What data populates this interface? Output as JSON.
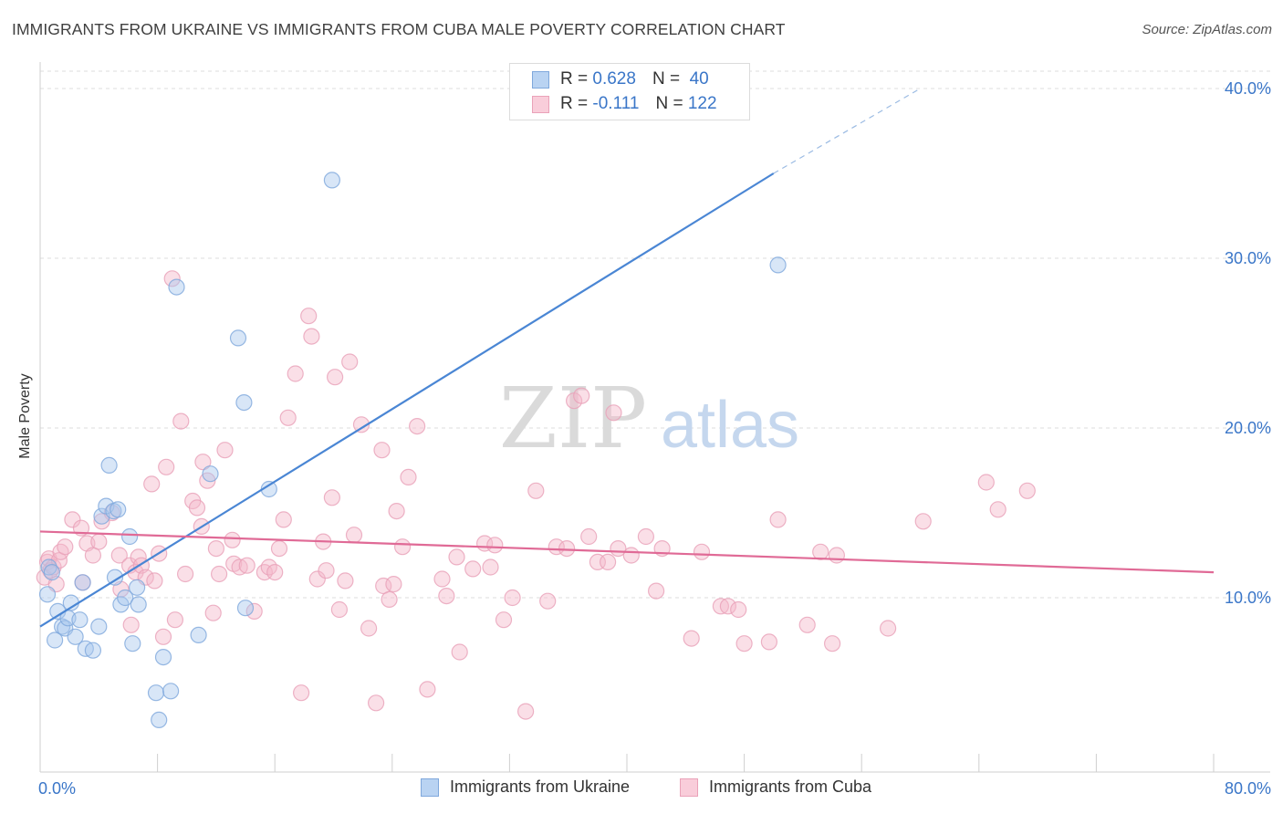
{
  "header": {
    "title": "IMMIGRANTS FROM UKRAINE VS IMMIGRANTS FROM CUBA MALE POVERTY CORRELATION CHART",
    "source": "Source: ZipAtlas.com"
  },
  "watermark": {
    "zip": "ZIP",
    "atlas": "atlas"
  },
  "legend": {
    "rows": [
      {
        "r_label": "R =",
        "r_value": "0.628",
        "n_label": "N =",
        "n_value": "40",
        "color": "#a9c8ee"
      },
      {
        "r_label": "R =",
        "r_value": "-0.111",
        "n_label": "N =",
        "n_value": "122",
        "color": "#f4b8ca"
      }
    ]
  },
  "bottom_legend": [
    {
      "label": "Immigrants from Ukraine",
      "color": "#a9c8ee"
    },
    {
      "label": "Immigrants from Cuba",
      "color": "#f4b8ca"
    }
  ],
  "chart_data": {
    "type": "scatter",
    "ylabel": "Male Poverty",
    "xlabel": "",
    "xlim": [
      0,
      80
    ],
    "ylim": [
      0,
      42
    ],
    "x_tick_labels": [
      {
        "value": 0,
        "label": "0.0%"
      },
      {
        "value": 80,
        "label": "80.0%"
      }
    ],
    "y_tick_labels": [
      {
        "value": 10,
        "label": "10.0%"
      },
      {
        "value": 20,
        "label": "20.0%"
      },
      {
        "value": 30,
        "label": "30.0%"
      },
      {
        "value": 40,
        "label": "40.0%"
      }
    ],
    "grid": "horizontal dashed",
    "colors": {
      "ukraine": "#4a86d4",
      "ukraine_fill": "#a9c8ee",
      "cuba": "#e06a96",
      "cuba_fill": "#f4b8ca",
      "tick_label": "#3a76c8"
    },
    "series": [
      {
        "name": "Immigrants from Ukraine",
        "trend": {
          "x": [
            0,
            50
          ],
          "y": [
            8.3,
            35.0
          ],
          "dashed_to": [
            60,
            40.0
          ]
        },
        "points": [
          [
            0.5,
            10.2
          ],
          [
            0.6,
            11.8
          ],
          [
            0.8,
            11.5
          ],
          [
            1.0,
            7.5
          ],
          [
            1.2,
            9.2
          ],
          [
            1.5,
            8.3
          ],
          [
            1.7,
            8.2
          ],
          [
            1.9,
            8.8
          ],
          [
            2.1,
            9.7
          ],
          [
            2.4,
            7.7
          ],
          [
            2.7,
            8.7
          ],
          [
            2.9,
            10.9
          ],
          [
            3.1,
            7.0
          ],
          [
            3.6,
            6.9
          ],
          [
            4.0,
            8.3
          ],
          [
            4.2,
            14.8
          ],
          [
            4.5,
            15.4
          ],
          [
            4.7,
            17.8
          ],
          [
            5.0,
            15.1
          ],
          [
            5.1,
            11.2
          ],
          [
            5.3,
            15.2
          ],
          [
            5.5,
            9.6
          ],
          [
            5.8,
            10.0
          ],
          [
            6.1,
            13.6
          ],
          [
            6.3,
            7.3
          ],
          [
            6.6,
            10.6
          ],
          [
            6.7,
            9.6
          ],
          [
            7.9,
            4.4
          ],
          [
            8.1,
            2.8
          ],
          [
            8.4,
            6.5
          ],
          [
            8.9,
            4.5
          ],
          [
            9.3,
            28.3
          ],
          [
            10.8,
            7.8
          ],
          [
            11.6,
            17.3
          ],
          [
            13.5,
            25.3
          ],
          [
            13.9,
            21.5
          ],
          [
            14.0,
            9.4
          ],
          [
            15.6,
            16.4
          ],
          [
            19.9,
            34.6
          ],
          [
            50.3,
            29.6
          ]
        ]
      },
      {
        "name": "Immigrants from Cuba",
        "trend": {
          "x": [
            0,
            80
          ],
          "y": [
            13.9,
            11.5
          ]
        },
        "points": [
          [
            0.3,
            11.2
          ],
          [
            0.5,
            12.1
          ],
          [
            0.6,
            12.3
          ],
          [
            0.7,
            11.6
          ],
          [
            0.9,
            11.8
          ],
          [
            1.1,
            10.8
          ],
          [
            1.3,
            12.2
          ],
          [
            1.4,
            12.7
          ],
          [
            1.7,
            13.0
          ],
          [
            2.2,
            14.6
          ],
          [
            2.8,
            14.1
          ],
          [
            2.9,
            10.9
          ],
          [
            3.2,
            13.2
          ],
          [
            3.6,
            12.5
          ],
          [
            4.0,
            13.3
          ],
          [
            4.2,
            14.5
          ],
          [
            4.9,
            15.0
          ],
          [
            5.4,
            12.5
          ],
          [
            5.5,
            10.5
          ],
          [
            6.1,
            11.9
          ],
          [
            6.2,
            8.4
          ],
          [
            6.5,
            11.5
          ],
          [
            6.7,
            12.4
          ],
          [
            6.9,
            11.9
          ],
          [
            7.2,
            11.2
          ],
          [
            7.6,
            16.7
          ],
          [
            7.8,
            11.0
          ],
          [
            8.1,
            12.6
          ],
          [
            8.4,
            7.7
          ],
          [
            8.6,
            17.7
          ],
          [
            9.0,
            28.8
          ],
          [
            9.2,
            8.7
          ],
          [
            9.6,
            20.4
          ],
          [
            9.9,
            11.4
          ],
          [
            10.4,
            15.7
          ],
          [
            10.7,
            15.3
          ],
          [
            11.0,
            14.2
          ],
          [
            11.1,
            18.0
          ],
          [
            11.4,
            16.9
          ],
          [
            11.8,
            9.1
          ],
          [
            12.0,
            12.9
          ],
          [
            12.2,
            11.4
          ],
          [
            12.6,
            18.7
          ],
          [
            13.1,
            13.4
          ],
          [
            13.2,
            12.0
          ],
          [
            13.6,
            11.8
          ],
          [
            14.1,
            11.9
          ],
          [
            14.6,
            9.2
          ],
          [
            15.3,
            11.5
          ],
          [
            15.6,
            11.8
          ],
          [
            16.0,
            11.5
          ],
          [
            16.3,
            12.9
          ],
          [
            16.6,
            14.6
          ],
          [
            16.9,
            20.6
          ],
          [
            17.4,
            23.2
          ],
          [
            17.8,
            4.4
          ],
          [
            18.3,
            26.6
          ],
          [
            18.5,
            25.4
          ],
          [
            18.9,
            11.1
          ],
          [
            19.3,
            13.3
          ],
          [
            19.5,
            11.6
          ],
          [
            19.9,
            15.9
          ],
          [
            20.1,
            23.0
          ],
          [
            20.4,
            9.3
          ],
          [
            20.8,
            11.0
          ],
          [
            21.1,
            23.9
          ],
          [
            21.4,
            13.7
          ],
          [
            21.9,
            20.2
          ],
          [
            22.4,
            8.2
          ],
          [
            22.9,
            3.8
          ],
          [
            23.3,
            18.7
          ],
          [
            23.4,
            10.7
          ],
          [
            23.8,
            9.9
          ],
          [
            24.1,
            10.8
          ],
          [
            24.3,
            15.1
          ],
          [
            24.7,
            13.0
          ],
          [
            25.1,
            17.1
          ],
          [
            25.7,
            20.1
          ],
          [
            26.4,
            4.6
          ],
          [
            27.4,
            11.1
          ],
          [
            27.7,
            10.1
          ],
          [
            28.4,
            12.4
          ],
          [
            28.6,
            6.8
          ],
          [
            29.5,
            11.7
          ],
          [
            30.3,
            13.2
          ],
          [
            30.7,
            11.8
          ],
          [
            31.0,
            13.1
          ],
          [
            31.6,
            8.7
          ],
          [
            32.2,
            10.0
          ],
          [
            33.1,
            3.3
          ],
          [
            33.8,
            16.3
          ],
          [
            34.6,
            9.8
          ],
          [
            35.2,
            13.0
          ],
          [
            35.9,
            12.9
          ],
          [
            36.4,
            21.6
          ],
          [
            36.9,
            21.9
          ],
          [
            37.4,
            13.6
          ],
          [
            38.0,
            12.1
          ],
          [
            38.7,
            12.1
          ],
          [
            39.1,
            20.9
          ],
          [
            39.4,
            12.9
          ],
          [
            40.3,
            12.5
          ],
          [
            41.3,
            13.6
          ],
          [
            42.0,
            10.4
          ],
          [
            42.4,
            12.9
          ],
          [
            44.4,
            7.6
          ],
          [
            45.1,
            12.7
          ],
          [
            46.4,
            9.5
          ],
          [
            46.9,
            9.5
          ],
          [
            47.6,
            9.3
          ],
          [
            48.0,
            7.3
          ],
          [
            49.7,
            7.4
          ],
          [
            50.3,
            14.6
          ],
          [
            52.3,
            8.4
          ],
          [
            53.2,
            12.7
          ],
          [
            54.0,
            7.3
          ],
          [
            54.3,
            12.5
          ],
          [
            57.8,
            8.2
          ],
          [
            60.2,
            14.5
          ],
          [
            64.5,
            16.8
          ],
          [
            65.3,
            15.2
          ],
          [
            67.3,
            16.3
          ]
        ]
      }
    ]
  }
}
